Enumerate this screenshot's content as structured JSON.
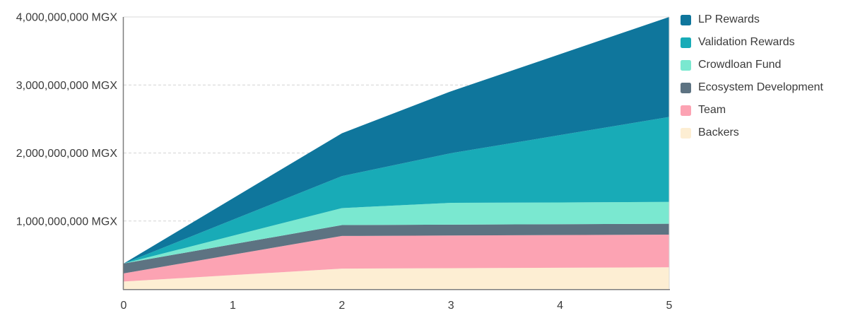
{
  "unit": "MGX",
  "colors": {
    "background": "#ffffff",
    "axis_line": "#7d7d7d",
    "frame_line": "#d9d9d9",
    "gridline": "#d4d4d4",
    "label_text": "#3b3b3b"
  },
  "chart_data": {
    "type": "area",
    "stacked": true,
    "title": "",
    "xlabel": "",
    "ylabel": "",
    "x": [
      0,
      1,
      2,
      3,
      4,
      5
    ],
    "x_tick_labels": [
      "0",
      "1",
      "2",
      "3",
      "4",
      "5"
    ],
    "y_ticks": [
      {
        "value": 1000000000,
        "label": "1,000,000,000 MGX"
      },
      {
        "value": 2000000000,
        "label": "2,000,000,000 MGX"
      },
      {
        "value": 3000000000,
        "label": "3,000,000,000 MGX"
      },
      {
        "value": 4000000000,
        "label": "4,000,000,000 MGX"
      }
    ],
    "gridline_values": [
      1000000000,
      2000000000,
      3000000000
    ],
    "ylim": [
      0,
      4000000000
    ],
    "grid": "horizontal-dashed",
    "legend_position": "right",
    "series_note": "values are cumulative tokens per category, stacked bottom-to-top in listed order",
    "series": [
      {
        "name": "Backers",
        "color": "#fdeed3",
        "values": [
          110000000,
          205000000,
          300000000,
          307000000,
          313000000,
          320000000
        ]
      },
      {
        "name": "Team",
        "color": "#fca3b3",
        "values": [
          120000000,
          300000000,
          480000000,
          480000000,
          480000000,
          480000000
        ]
      },
      {
        "name": "Ecosystem Development",
        "color": "#5d7382",
        "values": [
          145000000,
          153000000,
          160000000,
          160000000,
          160000000,
          160000000
        ]
      },
      {
        "name": "Crowdloan Fund",
        "color": "#7ae8d0",
        "values": [
          0,
          125000000,
          250000000,
          320000000,
          320000000,
          320000000
        ]
      },
      {
        "name": "Validation Rewards",
        "color": "#18abb7",
        "values": [
          0,
          235000000,
          470000000,
          730000000,
          990000000,
          1250000000
        ]
      },
      {
        "name": "LP Rewards",
        "color": "#0f769c",
        "values": [
          0,
          315000000,
          630000000,
          910000000,
          1190000000,
          1470000000
        ]
      }
    ],
    "legend_items": [
      "LP Rewards",
      "Validation Rewards",
      "Crowdloan Fund",
      "Ecosystem Development",
      "Team",
      "Backers"
    ]
  }
}
